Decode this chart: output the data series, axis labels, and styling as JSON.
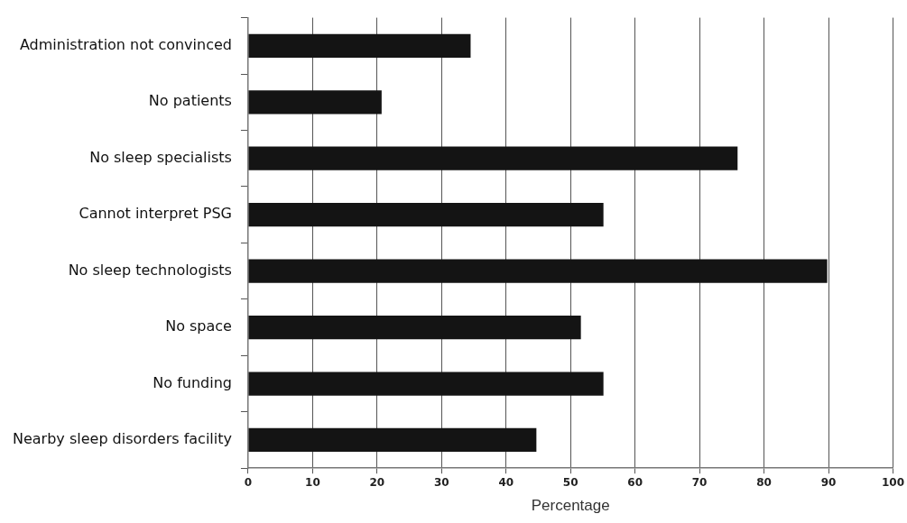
{
  "chart_data": {
    "type": "bar",
    "orientation": "horizontal",
    "xlabel": "Percentage",
    "categories": [
      "Administration not convinced",
      "No patients",
      "No sleep specialists",
      "Cannot interpret PSG",
      "No sleep technologists",
      "No space",
      "No funding",
      "Nearby sleep disorders facility"
    ],
    "values": [
      34.5,
      20.7,
      75.9,
      55.1,
      89.8,
      51.6,
      55.1,
      44.7
    ],
    "color": "#141414",
    "xlim": [
      0,
      100
    ],
    "xticks": [
      0,
      10,
      20,
      30,
      40,
      50,
      60,
      70,
      80,
      90,
      100
    ],
    "grid": "x",
    "legend": false
  }
}
